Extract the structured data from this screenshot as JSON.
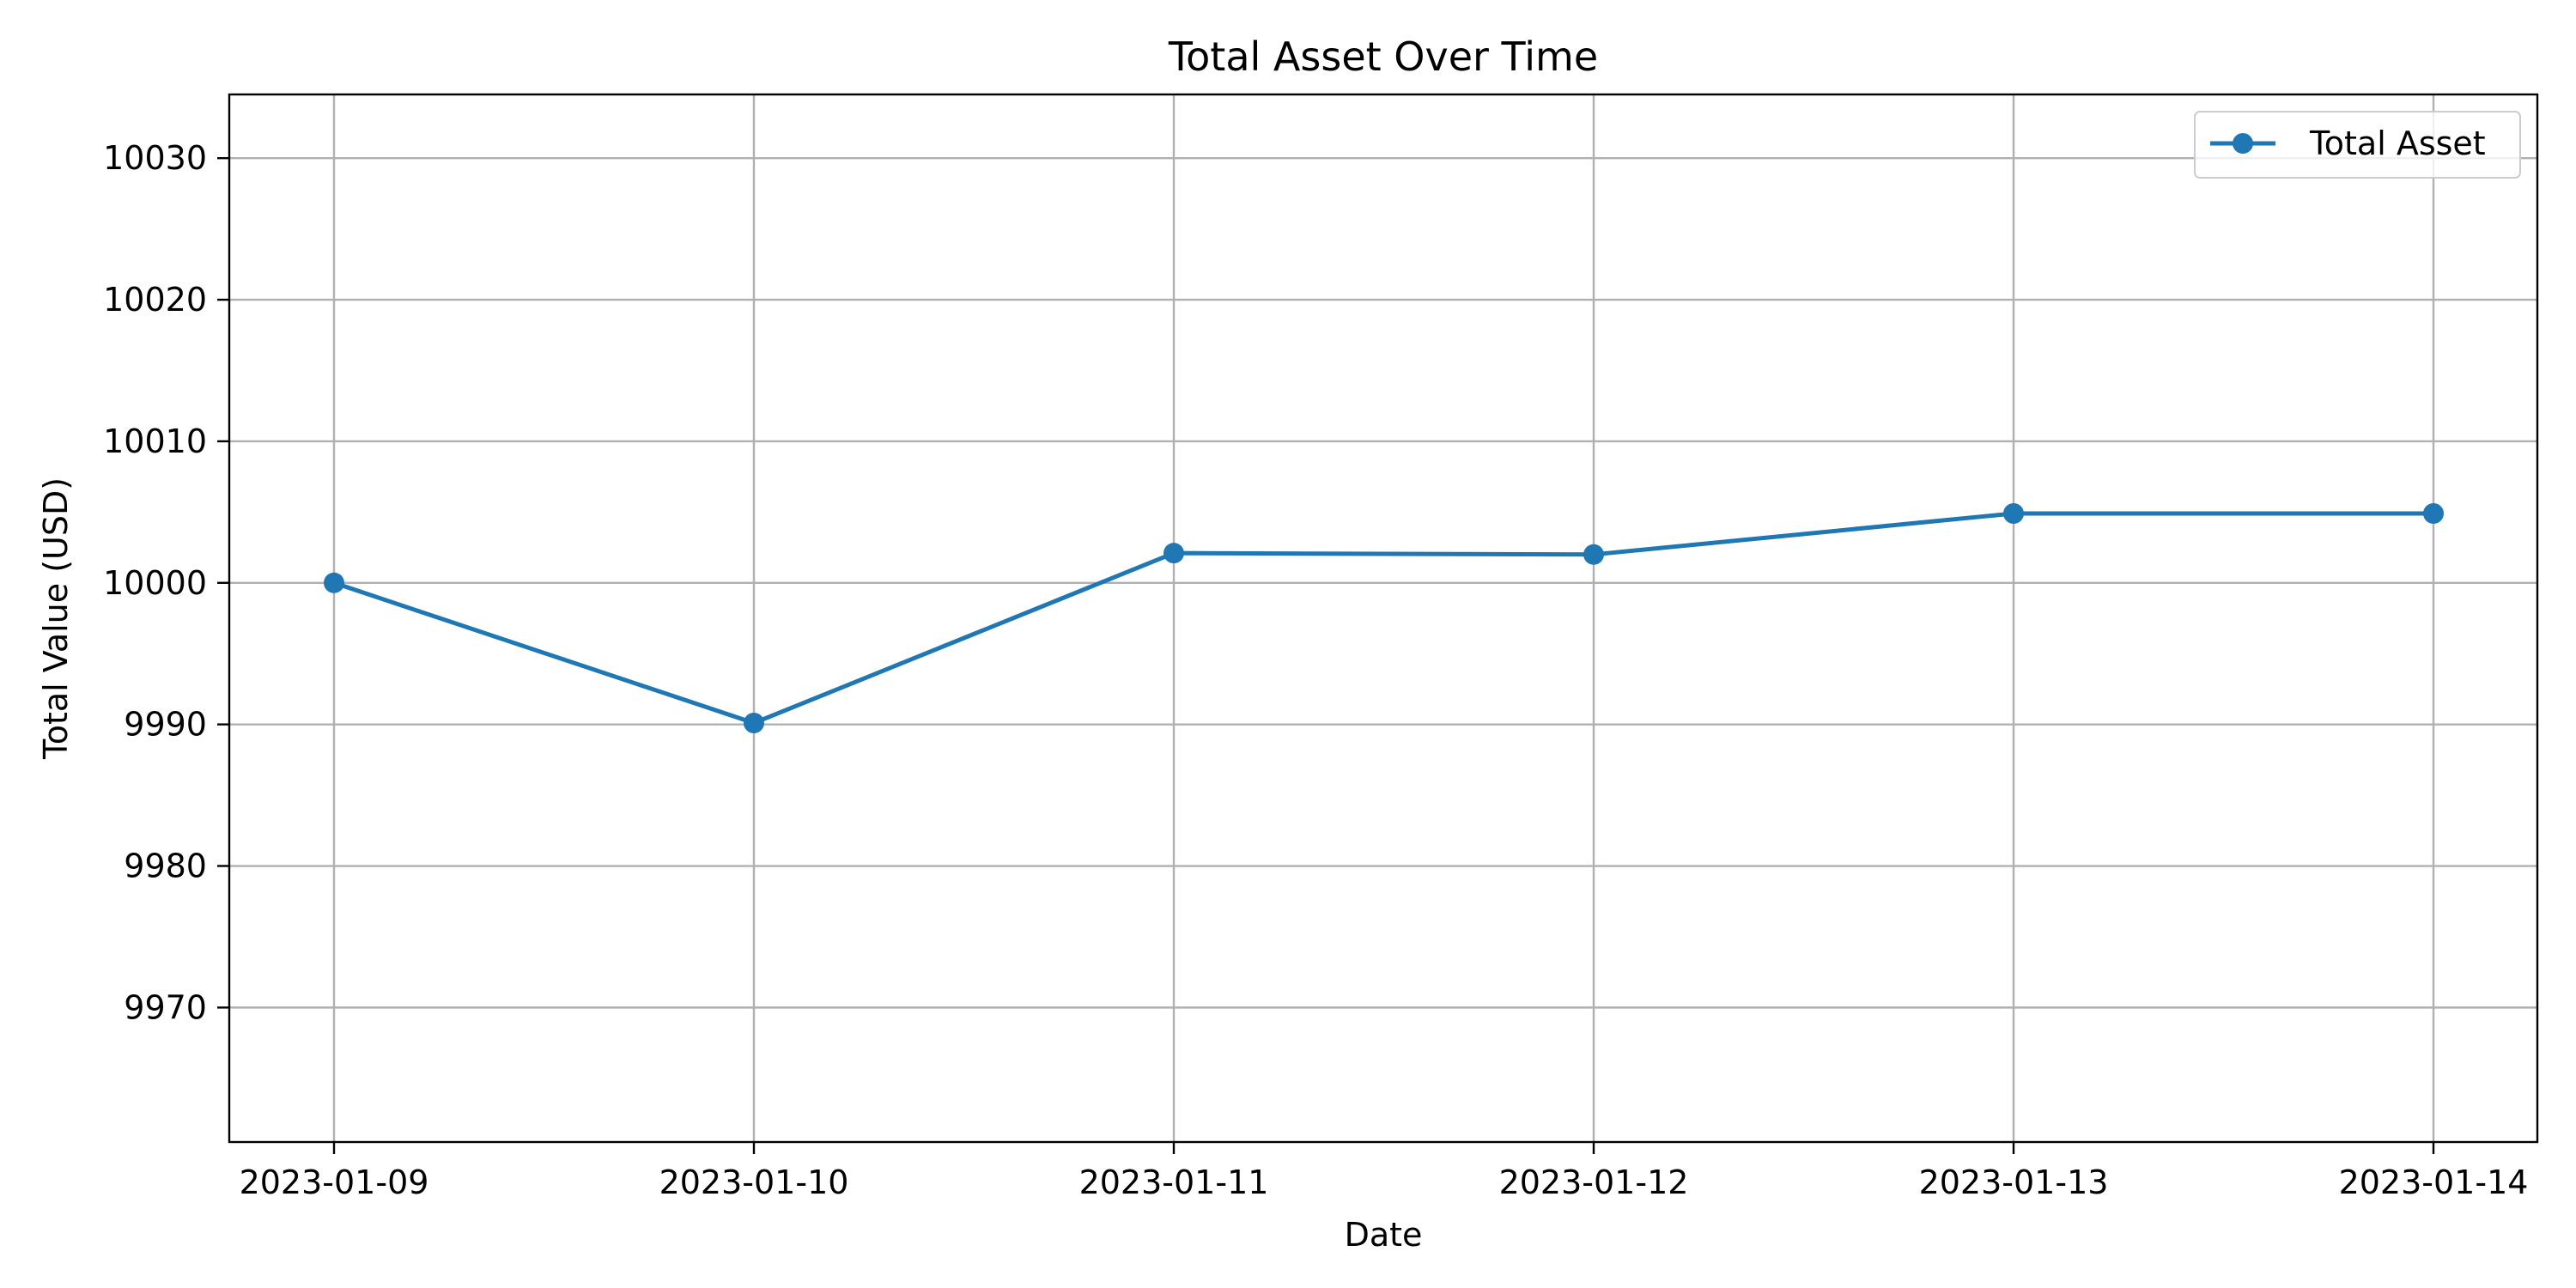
{
  "chart_data": {
    "type": "line",
    "title": "Total Asset Over Time",
    "xlabel": "Date",
    "ylabel": "Total Value (USD)",
    "x": [
      "2023-01-09",
      "2023-01-10",
      "2023-01-11",
      "2023-01-12",
      "2023-01-13",
      "2023-01-14"
    ],
    "series": [
      {
        "name": "Total Asset",
        "values": [
          10000,
          9990.1,
          10002.1,
          10002.0,
          10004.9,
          10004.9
        ],
        "color": "#1f77b4",
        "marker": "circle"
      }
    ],
    "ylim": [
      9960.5,
      10034.5
    ],
    "yticks": [
      9970,
      9980,
      9990,
      10000,
      10010,
      10020,
      10030
    ],
    "grid": true,
    "legend_position": "top-right"
  }
}
